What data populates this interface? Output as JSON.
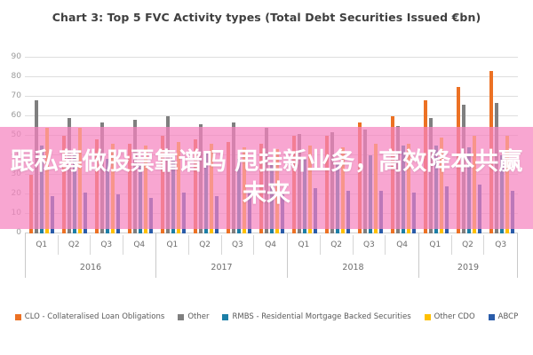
{
  "overlay": {
    "line1": "跟私募做股票靠谱吗 甩挂新业务，高效降本共赢",
    "line2": "未来",
    "band_color": "#F583BF",
    "text_color": "#FFFFFF"
  },
  "chart_data": {
    "type": "bar",
    "title": "Chart 3: Top 5 FVC Activity types (Total Debt Securities Issued €bn)",
    "xlabel": "",
    "ylabel": "",
    "ylim": [
      0,
      90
    ],
    "yticks": [
      0,
      10,
      20,
      30,
      40,
      50,
      60,
      70,
      80,
      90
    ],
    "grid": true,
    "legend_position": "bottom",
    "years": [
      {
        "label": "2016",
        "quarters": [
          "Q1",
          "Q2",
          "Q3",
          "Q4"
        ]
      },
      {
        "label": "2017",
        "quarters": [
          "Q1",
          "Q2",
          "Q3",
          "Q4"
        ]
      },
      {
        "label": "2018",
        "quarters": [
          "Q1",
          "Q2",
          "Q3",
          "Q4"
        ]
      },
      {
        "label": "2019",
        "quarters": [
          "Q1",
          "Q2",
          "Q3"
        ]
      }
    ],
    "categories": [
      "Q1 2016",
      "Q2 2016",
      "Q3 2016",
      "Q4 2016",
      "Q1 2017",
      "Q2 2017",
      "Q3 2017",
      "Q4 2017",
      "Q1 2018",
      "Q2 2018",
      "Q3 2018",
      "Q4 2018",
      "Q1 2019",
      "Q2 2019",
      "Q3 2019"
    ],
    "series": [
      {
        "name": "CLO - Collateralised Loan Obligations",
        "color": "#EC7124",
        "values": [
          30,
          50,
          48,
          46,
          50,
          48,
          47,
          46,
          50,
          50,
          57,
          60,
          68,
          75,
          83
        ]
      },
      {
        "name": "Other",
        "color": "#7F7F7F",
        "values": [
          68,
          59,
          57,
          58,
          60,
          56,
          57,
          54,
          51,
          52,
          53,
          55,
          59,
          66,
          67
        ]
      },
      {
        "name": "RMBS - Residential Mortgage Backed Securities",
        "color": "#1C7FA7",
        "values": [
          45,
          42,
          38,
          36,
          40,
          42,
          38,
          36,
          38,
          36,
          40,
          45,
          45,
          44,
          40
        ]
      },
      {
        "name": "Other CDO",
        "color": "#FFC000",
        "values": [
          54,
          54,
          46,
          45,
          47,
          46,
          44,
          43,
          45,
          44,
          46,
          46,
          49,
          50,
          50
        ]
      },
      {
        "name": "ABCP",
        "color": "#2A5CAA",
        "values": [
          19,
          21,
          20,
          18,
          21,
          19,
          22,
          20,
          23,
          22,
          22,
          21,
          24,
          25,
          22
        ]
      }
    ]
  }
}
